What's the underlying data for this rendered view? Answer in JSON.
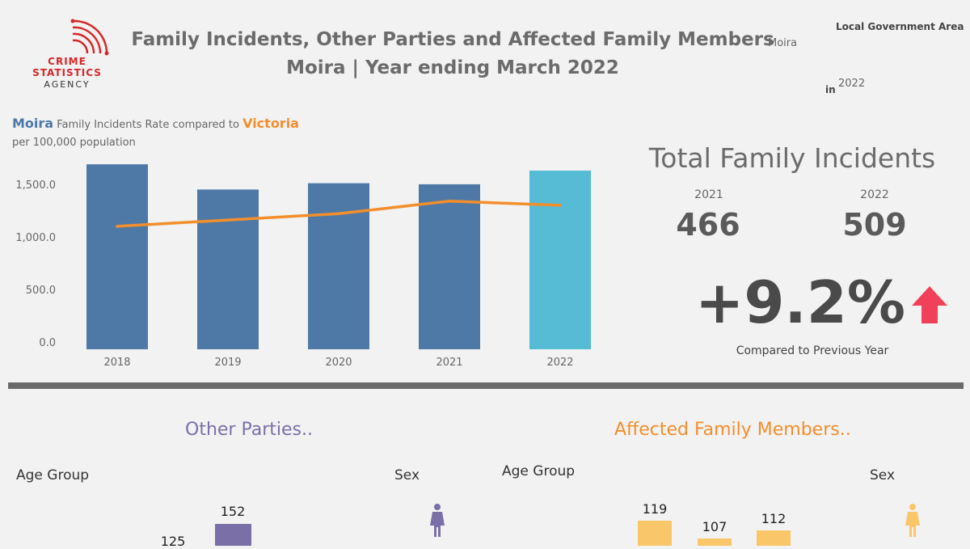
{
  "logo": {
    "lines": [
      "CRIME",
      "STATISTICS",
      "AGENCY"
    ],
    "accent": "#d62728"
  },
  "header": {
    "title_line1": "Family Incidents, Other Parties and Affected Family Members",
    "title_line2": "Moira  |  Year ending March 2022",
    "lga_filter_label": "Local Government Area",
    "lga_filter_value": "Moira",
    "year_filter_prefix": "in",
    "year_filter_value": "2022"
  },
  "rate_chart": {
    "area_name": "Moira",
    "middle_text": "Family Incidents Rate compared to",
    "compare_name": "Victoria",
    "subtitle": "per 100,000 population"
  },
  "chart_data": {
    "type": "bar",
    "categories": [
      "2018",
      "2019",
      "2020",
      "2021",
      "2022"
    ],
    "series": [
      {
        "values": [
          1760,
          1520,
          1580,
          1570,
          1700
        ],
        "colors": [
          "#4e79a7",
          "#4e79a7",
          "#4e79a7",
          "#4e79a7",
          "#56bcd6"
        ]
      },
      {
        "type": "line",
        "values": [
          1170,
          1230,
          1290,
          1410,
          1370
        ],
        "color": "#f28e2b"
      }
    ],
    "y_ticks": [
      "0.0",
      "500.0",
      "1,000.0",
      "1,500.0"
    ],
    "ylim": [
      0,
      1800
    ]
  },
  "kpi": {
    "title": "Total Family Incidents",
    "prev_year": "2021",
    "prev_value": "466",
    "curr_year": "2022",
    "curr_value": "509",
    "change": "+9.2%",
    "change_icon": "arrow-up-icon",
    "change_color": "#f0405a",
    "caption": "Compared to Previous Year"
  },
  "other_parties": {
    "heading": "Other Parties..",
    "color": "#7b6fa8",
    "age_label": "Age Group",
    "sex_label": "Sex",
    "age_values": [
      125,
      152
    ]
  },
  "affected": {
    "heading": "Affected Family Members..",
    "color": "#f28e2b",
    "bar_color": "#f9c76a",
    "age_label": "Age Group",
    "sex_label": "Sex",
    "age_values": [
      119,
      107,
      112
    ]
  }
}
